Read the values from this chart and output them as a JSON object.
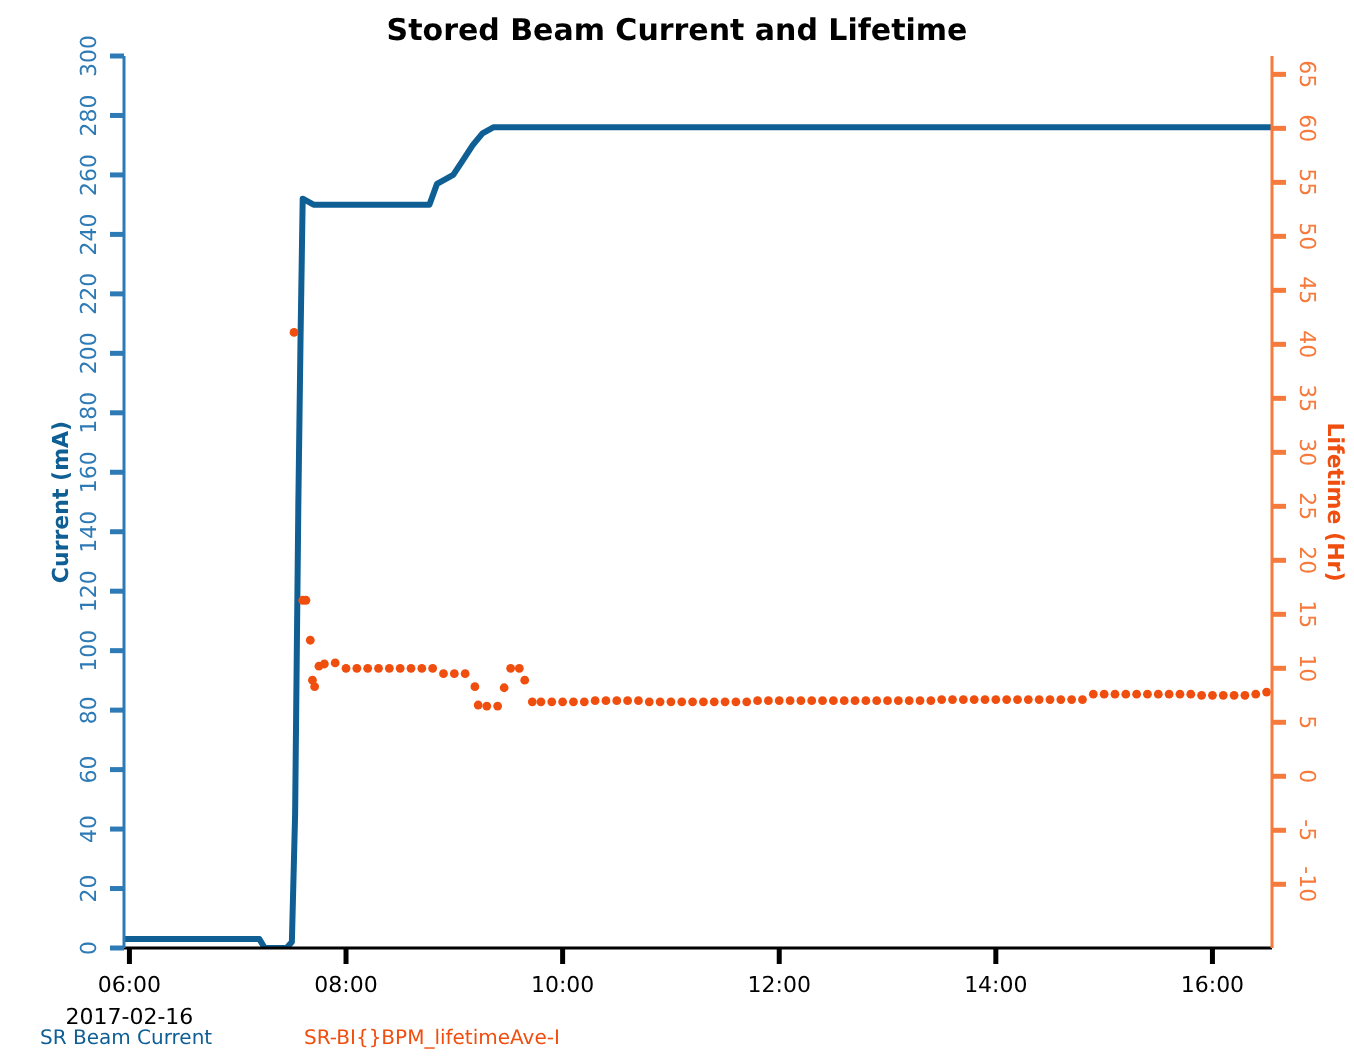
{
  "chart_data": {
    "type": "line",
    "title": "Stored Beam Current and Lifetime",
    "ylabel": "Current (mA)",
    "y2label": "Lifetime (Hr)",
    "annotations": [
      "2017-02-16"
    ],
    "legend": "bottom left",
    "grid": false,
    "marker": "none",
    "line_style": "solid",
    "xlim": [
      5.95,
      16.55
    ],
    "xticks": [
      {
        "value": 6,
        "label": "06:00"
      },
      {
        "value": 8,
        "label": "08:00"
      },
      {
        "value": 10,
        "label": "10:00"
      },
      {
        "value": 12,
        "label": "12:00"
      },
      {
        "value": 14,
        "label": "14:00"
      },
      {
        "value": 16,
        "label": "16:00"
      }
    ],
    "ylim": [
      0,
      300
    ],
    "yticks": [
      0,
      20,
      40,
      60,
      80,
      100,
      120,
      140,
      160,
      180,
      200,
      220,
      240,
      260,
      280,
      300
    ],
    "y2lim": [
      -15.9,
      66.7
    ],
    "y2ticks": [
      -10,
      -5,
      0,
      5,
      10,
      15,
      20,
      25,
      30,
      35,
      40,
      45,
      50,
      55,
      60,
      65
    ],
    "series": [
      {
        "name": "SR Beam Current",
        "color": "#0f5f94",
        "x": [
          5.95,
          7.2,
          7.25,
          7.45,
          7.5,
          7.53,
          7.56,
          7.58,
          7.6,
          7.7,
          8.0,
          8.5,
          8.77,
          8.84,
          8.99,
          9.08,
          9.17,
          9.26,
          9.36,
          10,
          12,
          14,
          16,
          16.55
        ],
        "values": [
          3,
          3,
          0,
          0,
          2,
          45,
          150,
          205,
          252,
          250,
          250,
          250,
          250,
          257,
          260,
          265,
          270,
          274,
          276,
          276,
          276,
          276,
          276,
          276
        ]
      },
      {
        "name": "SR-BI{}BPM_lifetimeAve-I",
        "color": "#f04e0f",
        "type": "scatter",
        "axis": "y2",
        "marker": "circle",
        "x": [
          7.52,
          7.6,
          7.63,
          7.67,
          7.69,
          7.71,
          7.75,
          7.8,
          7.9,
          8.0,
          8.1,
          8.2,
          8.3,
          8.4,
          8.5,
          8.6,
          8.7,
          8.8,
          8.9,
          9.0,
          9.1,
          9.19,
          9.22,
          9.3,
          9.4,
          9.46,
          9.52,
          9.6,
          9.65,
          9.72,
          9.8,
          9.9,
          10.0,
          10.1,
          10.2,
          10.3,
          10.4,
          10.5,
          10.6,
          10.7,
          10.8,
          10.9,
          11.0,
          11.1,
          11.2,
          11.3,
          11.4,
          11.5,
          11.6,
          11.7,
          11.8,
          11.9,
          12.0,
          12.1,
          12.2,
          12.3,
          12.4,
          12.5,
          12.6,
          12.7,
          12.8,
          12.9,
          13.0,
          13.1,
          13.2,
          13.3,
          13.4,
          13.5,
          13.6,
          13.7,
          13.8,
          13.9,
          14.0,
          14.1,
          14.2,
          14.3,
          14.4,
          14.5,
          14.6,
          14.7,
          14.8,
          14.9,
          15.0,
          15.1,
          15.2,
          15.3,
          15.4,
          15.5,
          15.6,
          15.7,
          15.8,
          15.9,
          16.0,
          16.1,
          16.2,
          16.3,
          16.4,
          16.5
        ],
        "values": [
          41.1,
          16.3,
          16.3,
          12.6,
          8.9,
          8.3,
          10.2,
          10.4,
          10.5,
          10.0,
          10.0,
          10.0,
          10.0,
          10.0,
          10.0,
          10.0,
          10.0,
          10.0,
          9.5,
          9.5,
          9.5,
          8.3,
          6.6,
          6.5,
          6.5,
          8.2,
          10.0,
          10.0,
          8.9,
          6.9,
          6.9,
          6.9,
          6.9,
          6.9,
          6.9,
          7.0,
          7.0,
          7.0,
          7.0,
          7.0,
          6.9,
          6.9,
          6.9,
          6.9,
          6.9,
          6.9,
          6.9,
          6.9,
          6.9,
          6.9,
          7.0,
          7.0,
          7.0,
          7.0,
          7.0,
          7.0,
          7.0,
          7.0,
          7.0,
          7.0,
          7.0,
          7.0,
          7.0,
          7.0,
          7.0,
          7.0,
          7.0,
          7.1,
          7.1,
          7.1,
          7.1,
          7.1,
          7.1,
          7.1,
          7.1,
          7.1,
          7.1,
          7.1,
          7.1,
          7.1,
          7.1,
          7.6,
          7.6,
          7.6,
          7.6,
          7.6,
          7.6,
          7.6,
          7.6,
          7.6,
          7.6,
          7.5,
          7.5,
          7.5,
          7.5,
          7.5,
          7.6,
          7.8
        ]
      }
    ]
  }
}
